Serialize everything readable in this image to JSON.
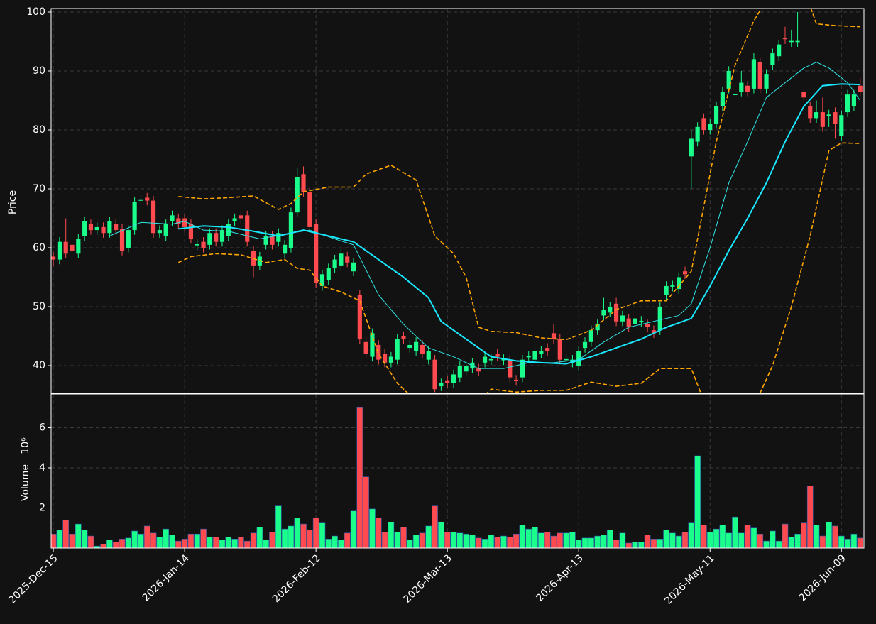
{
  "chart_data": {
    "type": "candlestick",
    "ylabel": "Price",
    "grid": true,
    "up_color": "#1aff8c",
    "down_color": "#ff4a4f",
    "xlim": [
      -0.35,
      129.6
    ],
    "ylim": [
      35.3,
      100.6
    ],
    "yticks": [
      40,
      50,
      60,
      70,
      80,
      90,
      100
    ],
    "xticks": [
      {
        "value": 0,
        "label": "2025-Dec-15"
      },
      {
        "value": 21,
        "label": "2026-Jan-14"
      },
      {
        "value": 42,
        "label": "2026-Feb-12"
      },
      {
        "value": 63,
        "label": "2026-Mar-13"
      },
      {
        "value": 84,
        "label": "2026-Apr-13"
      },
      {
        "value": 105,
        "label": "2026-May-11"
      },
      {
        "value": 126,
        "label": "2026-Jun-09"
      }
    ],
    "open": [
      58.5,
      58,
      61,
      60.5,
      59,
      62,
      64,
      63,
      63.5,
      62.5,
      64,
      63.2,
      60,
      63,
      68,
      68.5,
      68,
      62.5,
      62,
      64.5,
      65,
      65,
      64,
      60.4,
      61,
      60.5,
      62.5,
      61,
      62,
      64.5,
      65.5,
      65.5,
      59.5,
      57,
      60.5,
      62,
      61,
      59,
      60,
      66,
      72.5,
      69.5,
      64,
      53.5,
      54.5,
      56.5,
      57,
      58.5,
      56,
      52,
      44,
      41.5,
      43.5,
      42,
      40.5,
      41,
      45,
      43,
      42.5,
      43.5,
      41,
      41,
      36.5,
      37.5,
      37,
      38,
      39,
      39.5,
      39.5,
      40.5,
      40.9,
      42,
      40.9,
      41,
      37.6,
      38,
      41.4,
      41,
      42,
      43,
      45.5,
      44.5,
      40.9,
      40.5,
      40,
      43,
      44,
      46,
      48.5,
      49,
      50.5,
      47.5,
      48,
      47,
      47.4,
      47,
      46,
      46,
      52,
      53.4,
      53,
      56,
      75.5,
      78,
      82,
      80,
      81,
      84,
      87,
      85.9,
      86.5,
      87.5,
      87,
      91.5,
      87,
      91,
      92.5,
      95.6,
      94.9,
      94.9,
      86.5,
      84,
      82,
      83,
      82.4,
      83,
      79,
      83,
      84,
      87.5
    ],
    "high": [
      59.3,
      61.8,
      65,
      61.3,
      62.3,
      65.3,
      64.8,
      64.3,
      64.3,
      65.3,
      64.8,
      64,
      63.8,
      68.6,
      68.9,
      69.3,
      68.8,
      63.8,
      64.8,
      66.3,
      65.8,
      65.8,
      64.8,
      61.4,
      61.8,
      63.3,
      63.3,
      63.8,
      64.8,
      65.8,
      66.3,
      66.3,
      60.3,
      59.3,
      62.8,
      62.8,
      63.3,
      61.3,
      66.8,
      73.5,
      73.8,
      70.3,
      64.8,
      56.3,
      57.3,
      58.8,
      59.8,
      59.3,
      58.3,
      52.8,
      44.8,
      46.3,
      44.3,
      42.8,
      42.3,
      45.3,
      45.8,
      44.3,
      44.8,
      44.3,
      43.3,
      41.8,
      37.8,
      38.3,
      39.3,
      40.8,
      40.8,
      41.3,
      40.3,
      42.3,
      41.9,
      42.8,
      41.9,
      41.8,
      38.4,
      41.8,
      42.4,
      43.3,
      43.3,
      43.8,
      47,
      45.3,
      41.9,
      41.8,
      43.3,
      44.8,
      46.8,
      47.8,
      51.5,
      50.8,
      51.5,
      49.3,
      48.8,
      48.8,
      48.4,
      47.8,
      46.8,
      50.8,
      54.3,
      54.4,
      55.8,
      56.8,
      80,
      81.3,
      82.8,
      81.8,
      84.8,
      87.3,
      90.8,
      88,
      90,
      88.3,
      93,
      92.3,
      90.3,
      93.8,
      95.3,
      97.5,
      97,
      100,
      86.8,
      84.8,
      85,
      85.5,
      83.4,
      83.8,
      83.3,
      86.8,
      86.8,
      88.8
    ],
    "low": [
      57,
      57.2,
      58.2,
      58.7,
      58.2,
      61.2,
      62.2,
      62.2,
      61.7,
      61.7,
      62.2,
      58.7,
      59.2,
      62.2,
      67.2,
      67.2,
      61.7,
      61.7,
      61.2,
      63.7,
      63.2,
      62.7,
      60.7,
      59.6,
      59.2,
      59.7,
      60.2,
      60.2,
      61.2,
      63.7,
      64.2,
      60.2,
      55,
      56.2,
      59.7,
      59.7,
      60.2,
      58.2,
      59.2,
      65.2,
      68.7,
      62.7,
      53.2,
      52.7,
      53.7,
      55.7,
      56.2,
      56.7,
      55.2,
      43.7,
      41.2,
      40.7,
      40.2,
      39.7,
      39.7,
      40.2,
      43.7,
      42.2,
      41.7,
      41.2,
      40.2,
      35.5,
      35.7,
      36.2,
      36.2,
      37.2,
      38.2,
      38.7,
      38.2,
      39.7,
      40.1,
      40.7,
      40.1,
      37.2,
      36.6,
      37.2,
      40.6,
      40.2,
      41.2,
      41.7,
      43.7,
      40.2,
      40.1,
      39.7,
      39.2,
      42.2,
      43.2,
      45.2,
      47.7,
      48.2,
      46.7,
      46.7,
      45.7,
      46.2,
      46.6,
      45.7,
      44.7,
      45.2,
      51.2,
      52.6,
      52.2,
      54.7,
      70,
      77.2,
      79.2,
      79.2,
      80.2,
      83.2,
      86.2,
      85.1,
      85.7,
      85.7,
      86.2,
      86.2,
      86.2,
      90.2,
      91.7,
      94.6,
      94.1,
      94.1,
      84.7,
      81.2,
      81.2,
      79.7,
      80.5,
      78.5,
      78.2,
      82.2,
      83.2,
      85.7
    ],
    "close": [
      58,
      61,
      59,
      59.5,
      61.5,
      64.5,
      63,
      63.5,
      62.5,
      64.5,
      63,
      59.5,
      63,
      67.8,
      68.1,
      68,
      62.5,
      63,
      64,
      65.5,
      64,
      63.5,
      61.5,
      60.6,
      60,
      62.5,
      61,
      63,
      64,
      65,
      65,
      61,
      57,
      58.5,
      62,
      60.5,
      62.5,
      60.5,
      66,
      72,
      69.5,
      63.5,
      54,
      55.5,
      56.5,
      58,
      59,
      57.5,
      57.5,
      44.5,
      42,
      45.5,
      41,
      40.5,
      41.5,
      44.5,
      44.5,
      43.5,
      44,
      42,
      42.5,
      36,
      37,
      37,
      38.5,
      40,
      40,
      40.5,
      39,
      41.5,
      41.1,
      41.5,
      41.1,
      38,
      37.4,
      41,
      41.6,
      42.5,
      42.5,
      42.5,
      44.5,
      41,
      41.1,
      41,
      42.5,
      44,
      46,
      47,
      49.5,
      50,
      47.5,
      48.5,
      46.5,
      48,
      47.6,
      46.5,
      45.5,
      50,
      53.5,
      53.6,
      55,
      55.5,
      78.5,
      80.5,
      80,
      81,
      84,
      86.5,
      90,
      86.1,
      88,
      86.5,
      92,
      87,
      89.5,
      93,
      94.5,
      95.4,
      95.1,
      95.1,
      85.5,
      82,
      83,
      80.5,
      82.6,
      81,
      82.5,
      86,
      86,
      86.5
    ],
    "overlays": [
      {
        "color": "#2ee6e6",
        "width": 1,
        "style": "solid",
        "x": [
          9,
          14,
          19,
          21,
          24,
          28,
          33,
          38,
          41,
          45,
          48,
          52,
          56,
          60,
          64,
          68,
          72,
          76,
          80,
          84,
          88,
          92,
          96,
          100,
          102,
          105,
          108,
          111,
          114,
          117,
          120,
          122,
          124,
          127,
          129
        ],
        "values": [
          62,
          64.3,
          64,
          64.5,
          63,
          62.8,
          61.5,
          62.5,
          63,
          61.5,
          60.5,
          52,
          47,
          43,
          41.5,
          39.5,
          39.5,
          40.5,
          40.5,
          41,
          44,
          46.5,
          47.5,
          48.5,
          50.5,
          60,
          71,
          78,
          85.5,
          88,
          90.5,
          91.5,
          90.5,
          88,
          85
        ]
      },
      {
        "color": "#19e8ff",
        "width": 2,
        "style": "solid",
        "x": [
          20,
          24,
          28,
          32,
          36,
          40,
          44,
          48,
          52,
          56,
          60,
          62,
          66,
          70,
          74,
          78,
          82,
          86,
          90,
          94,
          98,
          102,
          105,
          108,
          111,
          114,
          117,
          120,
          123,
          126,
          129
        ],
        "values": [
          63.2,
          63.7,
          63.5,
          62.8,
          62,
          63,
          62,
          61,
          58,
          55,
          51.5,
          47.5,
          44.5,
          41.5,
          40.8,
          40.5,
          40.3,
          41.5,
          43,
          44.5,
          46.5,
          48,
          53.5,
          59.5,
          65,
          71,
          78,
          84,
          87.5,
          87.8,
          87.7
        ]
      },
      {
        "color": "#ffa500",
        "width": 1.6,
        "style": "dashed",
        "x": [
          20,
          24,
          28,
          32,
          36,
          38,
          40,
          44,
          48,
          50,
          54,
          58,
          61,
          64,
          66,
          68,
          70,
          74,
          78,
          82,
          86,
          90,
          94,
          98,
          102,
          106,
          109,
          112,
          114,
          117,
          120,
          122,
          125,
          129
        ],
        "values": [
          68.7,
          68.3,
          68.5,
          68.8,
          66.5,
          67.5,
          69.5,
          70.3,
          70.3,
          72.5,
          74,
          71.5,
          62,
          59,
          55,
          46.5,
          45.8,
          45.6,
          44.7,
          44.4,
          46,
          49.5,
          51,
          51,
          56,
          78,
          91,
          98.5,
          102,
          103,
          104,
          98,
          97.7,
          97.5
        ]
      },
      {
        "color": "#ffa500",
        "width": 1.6,
        "style": "dashed",
        "x": [
          20,
          22,
          26,
          30,
          34,
          37,
          39,
          41,
          43,
          46,
          49,
          52,
          55,
          58,
          64,
          70,
          74,
          78,
          82,
          86,
          90,
          94,
          97,
          102,
          104,
          108,
          112,
          115,
          118,
          121,
          124,
          126,
          129
        ],
        "values": [
          57.5,
          58.5,
          59,
          58.8,
          57.5,
          58,
          56.5,
          56.2,
          53.5,
          52.5,
          51,
          42,
          37,
          34,
          30,
          36,
          35.5,
          35.8,
          35.8,
          37.2,
          36.5,
          37,
          39.5,
          39.5,
          34,
          25,
          33,
          40,
          50,
          62,
          76.5,
          77.8,
          77.7
        ]
      }
    ],
    "volume": {
      "ylabel": "Volume",
      "exponent": "10⁶",
      "ylim": [
        0,
        7.68
      ],
      "yticks": [
        2,
        4,
        6
      ],
      "values": [
        0.7,
        0.9,
        1.4,
        0.7,
        1.2,
        0.9,
        0.6,
        0.1,
        0.2,
        0.4,
        0.3,
        0.45,
        0.5,
        0.85,
        0.7,
        1.1,
        0.75,
        0.55,
        0.95,
        0.65,
        0.35,
        0.45,
        0.7,
        0.7,
        0.95,
        0.55,
        0.55,
        0.4,
        0.55,
        0.45,
        0.55,
        0.35,
        0.75,
        1.05,
        0.4,
        0.8,
        2.1,
        0.95,
        1.1,
        1.5,
        1.2,
        0.9,
        1.5,
        1.25,
        0.45,
        0.6,
        0.4,
        0.75,
        1.85,
        7.0,
        3.55,
        1.95,
        1.5,
        0.8,
        1.3,
        0.8,
        1.05,
        0.4,
        0.65,
        0.75,
        1.1,
        2.1,
        1.3,
        0.8,
        0.8,
        0.75,
        0.7,
        0.65,
        0.5,
        0.45,
        0.65,
        0.55,
        0.6,
        0.55,
        0.7,
        1.15,
        0.95,
        1.05,
        0.75,
        0.8,
        0.6,
        0.75,
        0.75,
        0.8,
        0.4,
        0.5,
        0.5,
        0.6,
        0.65,
        0.9,
        0.4,
        0.75,
        0.25,
        0.3,
        0.3,
        0.65,
        0.45,
        0.45,
        0.9,
        0.75,
        0.6,
        0.8,
        1.25,
        4.6,
        1.15,
        0.8,
        0.95,
        1.15,
        0.75,
        1.55,
        0.75,
        1.15,
        1.0,
        0.7,
        0.35,
        0.85,
        0.35,
        1.2,
        0.55,
        0.7,
        1.25,
        3.1,
        1.15,
        0.6,
        1.3,
        1.1,
        0.6,
        0.45,
        0.7,
        0.5
      ]
    }
  }
}
